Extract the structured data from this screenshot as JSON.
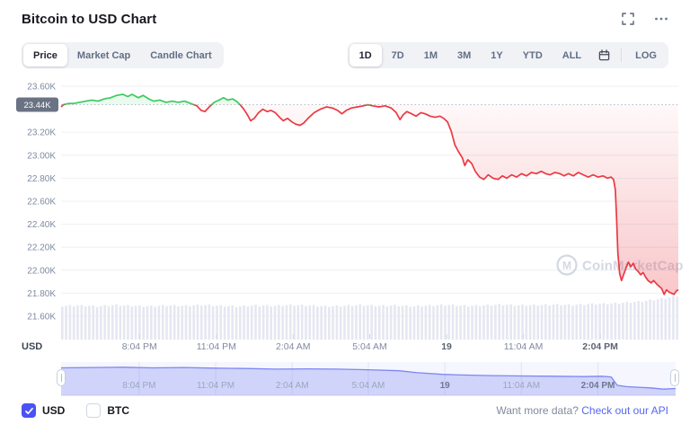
{
  "header": {
    "title": "Bitcoin to USD Chart"
  },
  "toolbar": {
    "tabs": [
      {
        "label": "Price",
        "selected": true
      },
      {
        "label": "Market Cap",
        "selected": false
      },
      {
        "label": "Candle Chart",
        "selected": false
      }
    ],
    "ranges": [
      {
        "label": "1D",
        "selected": true
      },
      {
        "label": "7D",
        "selected": false
      },
      {
        "label": "1M",
        "selected": false
      },
      {
        "label": "3M",
        "selected": false
      },
      {
        "label": "1Y",
        "selected": false
      },
      {
        "label": "YTD",
        "selected": false
      },
      {
        "label": "ALL",
        "selected": false
      }
    ],
    "log_label": "LOG"
  },
  "chart_data": {
    "type": "line",
    "title": "Bitcoin to USD Chart",
    "unit_label": "USD",
    "watermark": "CoinMarketCap",
    "baseline_value": 23.44,
    "baseline_label": "23.44K",
    "y_ticks": [
      {
        "label": "23.60K",
        "value": 23.6
      },
      {
        "label": "23.20K",
        "value": 23.2
      },
      {
        "label": "23.00K",
        "value": 23.0
      },
      {
        "label": "22.80K",
        "value": 22.8
      },
      {
        "label": "22.60K",
        "value": 22.6
      },
      {
        "label": "22.40K",
        "value": 22.4
      },
      {
        "label": "22.20K",
        "value": 22.2
      },
      {
        "label": "22.00K",
        "value": 22.0
      },
      {
        "label": "21.80K",
        "value": 21.8
      },
      {
        "label": "21.60K",
        "value": 21.6
      }
    ],
    "y_top_value": 23.6,
    "ylim": [
      21.55,
      23.65
    ],
    "x_labels": [
      {
        "label": "8:04 PM",
        "f": 0.127,
        "bold": false
      },
      {
        "label": "11:04 PM",
        "f": 0.2515,
        "bold": false
      },
      {
        "label": "2:04 AM",
        "f": 0.376,
        "bold": false
      },
      {
        "label": "5:04 AM",
        "f": 0.5,
        "bold": false
      },
      {
        "label": "19",
        "f": 0.6245,
        "bold": true
      },
      {
        "label": "11:04 AM",
        "f": 0.749,
        "bold": false
      },
      {
        "label": "2:04 PM",
        "f": 0.8735,
        "bold": true
      }
    ],
    "series": [
      [
        0,
        23.42
      ],
      [
        0.004,
        23.44
      ],
      [
        0.012,
        23.45
      ],
      [
        0.02,
        23.45
      ],
      [
        0.03,
        23.46
      ],
      [
        0.04,
        23.47
      ],
      [
        0.05,
        23.48
      ],
      [
        0.06,
        23.47
      ],
      [
        0.07,
        23.49
      ],
      [
        0.08,
        23.5
      ],
      [
        0.09,
        23.52
      ],
      [
        0.1,
        23.53
      ],
      [
        0.108,
        23.51
      ],
      [
        0.115,
        23.53
      ],
      [
        0.125,
        23.5
      ],
      [
        0.133,
        23.52
      ],
      [
        0.142,
        23.49
      ],
      [
        0.15,
        23.47
      ],
      [
        0.16,
        23.48
      ],
      [
        0.17,
        23.46
      ],
      [
        0.18,
        23.47
      ],
      [
        0.19,
        23.46
      ],
      [
        0.2,
        23.47
      ],
      [
        0.21,
        23.45
      ],
      [
        0.22,
        23.43
      ],
      [
        0.227,
        23.39
      ],
      [
        0.233,
        23.38
      ],
      [
        0.24,
        23.42
      ],
      [
        0.248,
        23.46
      ],
      [
        0.256,
        23.48
      ],
      [
        0.263,
        23.5
      ],
      [
        0.27,
        23.48
      ],
      [
        0.278,
        23.49
      ],
      [
        0.284,
        23.47
      ],
      [
        0.29,
        23.44
      ],
      [
        0.296,
        23.4
      ],
      [
        0.302,
        23.35
      ],
      [
        0.307,
        23.3
      ],
      [
        0.313,
        23.32
      ],
      [
        0.32,
        23.37
      ],
      [
        0.327,
        23.4
      ],
      [
        0.334,
        23.38
      ],
      [
        0.34,
        23.39
      ],
      [
        0.347,
        23.37
      ],
      [
        0.354,
        23.33
      ],
      [
        0.36,
        23.3
      ],
      [
        0.367,
        23.32
      ],
      [
        0.374,
        23.29
      ],
      [
        0.38,
        23.27
      ],
      [
        0.387,
        23.26
      ],
      [
        0.393,
        23.28
      ],
      [
        0.4,
        23.32
      ],
      [
        0.41,
        23.37
      ],
      [
        0.42,
        23.4
      ],
      [
        0.43,
        23.42
      ],
      [
        0.44,
        23.41
      ],
      [
        0.448,
        23.39
      ],
      [
        0.455,
        23.36
      ],
      [
        0.462,
        23.39
      ],
      [
        0.47,
        23.41
      ],
      [
        0.48,
        23.42
      ],
      [
        0.49,
        23.43
      ],
      [
        0.497,
        23.44
      ],
      [
        0.505,
        23.43
      ],
      [
        0.515,
        23.42
      ],
      [
        0.525,
        23.43
      ],
      [
        0.535,
        23.41
      ],
      [
        0.543,
        23.37
      ],
      [
        0.549,
        23.31
      ],
      [
        0.554,
        23.35
      ],
      [
        0.56,
        23.38
      ],
      [
        0.568,
        23.36
      ],
      [
        0.575,
        23.34
      ],
      [
        0.583,
        23.37
      ],
      [
        0.59,
        23.36
      ],
      [
        0.598,
        23.34
      ],
      [
        0.606,
        23.33
      ],
      [
        0.614,
        23.34
      ],
      [
        0.62,
        23.32
      ],
      [
        0.626,
        23.29
      ],
      [
        0.632,
        23.21
      ],
      [
        0.638,
        23.09
      ],
      [
        0.644,
        23.03
      ],
      [
        0.65,
        22.98
      ],
      [
        0.654,
        22.91
      ],
      [
        0.659,
        22.96
      ],
      [
        0.665,
        22.93
      ],
      [
        0.671,
        22.86
      ],
      [
        0.678,
        22.81
      ],
      [
        0.685,
        22.79
      ],
      [
        0.692,
        22.83
      ],
      [
        0.7,
        22.8
      ],
      [
        0.708,
        22.79
      ],
      [
        0.715,
        22.82
      ],
      [
        0.722,
        22.8
      ],
      [
        0.73,
        22.83
      ],
      [
        0.738,
        22.81
      ],
      [
        0.746,
        22.84
      ],
      [
        0.754,
        22.82
      ],
      [
        0.762,
        22.85
      ],
      [
        0.77,
        22.84
      ],
      [
        0.778,
        22.86
      ],
      [
        0.785,
        22.84
      ],
      [
        0.792,
        22.83
      ],
      [
        0.8,
        22.85
      ],
      [
        0.808,
        22.84
      ],
      [
        0.815,
        22.82
      ],
      [
        0.822,
        22.84
      ],
      [
        0.83,
        22.82
      ],
      [
        0.838,
        22.85
      ],
      [
        0.846,
        22.83
      ],
      [
        0.854,
        22.81
      ],
      [
        0.862,
        22.83
      ],
      [
        0.87,
        22.81
      ],
      [
        0.878,
        22.82
      ],
      [
        0.885,
        22.8
      ],
      [
        0.891,
        22.81
      ],
      [
        0.895,
        22.79
      ],
      [
        0.898,
        22.7
      ],
      [
        0.9,
        22.45
      ],
      [
        0.902,
        22.15
      ],
      [
        0.905,
        21.97
      ],
      [
        0.908,
        21.91
      ],
      [
        0.912,
        21.97
      ],
      [
        0.916,
        22.03
      ],
      [
        0.919,
        22.07
      ],
      [
        0.923,
        22.03
      ],
      [
        0.927,
        22.06
      ],
      [
        0.931,
        22.01
      ],
      [
        0.935,
        21.99
      ],
      [
        0.939,
        21.96
      ],
      [
        0.943,
        21.98
      ],
      [
        0.947,
        21.94
      ],
      [
        0.951,
        21.91
      ],
      [
        0.956,
        21.89
      ],
      [
        0.96,
        21.91
      ],
      [
        0.965,
        21.88
      ],
      [
        0.969,
        21.86
      ],
      [
        0.973,
        21.84
      ],
      [
        0.977,
        21.79
      ],
      [
        0.981,
        21.83
      ],
      [
        0.985,
        21.81
      ],
      [
        0.989,
        21.8
      ],
      [
        0.993,
        21.79
      ],
      [
        0.997,
        21.82
      ],
      [
        1,
        21.83
      ]
    ],
    "volume_profile": [
      0.75,
      0.76,
      0.74,
      0.77,
      0.75,
      0.74,
      0.76,
      0.75,
      0.77,
      0.75,
      0.74,
      0.76,
      0.75,
      0.77,
      0.76,
      0.74,
      0.75,
      0.77,
      0.75,
      0.76,
      0.74,
      0.76,
      0.77,
      0.75,
      0.76,
      0.78,
      0.76,
      0.77,
      0.78,
      0.77,
      0.79,
      0.8,
      0.82,
      0.85,
      0.9,
      0.97
    ],
    "navigator": {
      "points": [
        [
          0,
          0.18
        ],
        [
          0.05,
          0.17
        ],
        [
          0.1,
          0.16
        ],
        [
          0.15,
          0.18
        ],
        [
          0.2,
          0.17
        ],
        [
          0.25,
          0.19
        ],
        [
          0.3,
          0.2
        ],
        [
          0.35,
          0.22
        ],
        [
          0.4,
          0.21
        ],
        [
          0.45,
          0.22
        ],
        [
          0.5,
          0.24
        ],
        [
          0.55,
          0.27
        ],
        [
          0.58,
          0.33
        ],
        [
          0.62,
          0.38
        ],
        [
          0.65,
          0.4
        ],
        [
          0.7,
          0.42
        ],
        [
          0.75,
          0.43
        ],
        [
          0.8,
          0.44
        ],
        [
          0.85,
          0.45
        ],
        [
          0.88,
          0.44
        ],
        [
          0.895,
          0.46
        ],
        [
          0.905,
          0.72
        ],
        [
          0.92,
          0.76
        ],
        [
          0.94,
          0.78
        ],
        [
          0.96,
          0.8
        ],
        [
          0.98,
          0.84
        ],
        [
          1,
          0.82
        ]
      ]
    },
    "colors": {
      "green_line": "#3aca5e",
      "red_line": "#ea3943",
      "green_fill": "rgba(58,202,94,0.10)",
      "red_fill_deep": "rgba(234,57,67,0.30)",
      "volume_bar": "#e5e7f1",
      "grid": "#eef0f4",
      "baseline_dots": "#b6bdca",
      "badge_bg": "#6a7384",
      "axis_text": "#7f8aa0",
      "nav_line": "#7b87f2",
      "nav_fill": "rgba(124,134,245,0.30)",
      "nav_tint": "rgba(113,123,242,0.07)",
      "watermark": "#c8cfdc",
      "accent_checkbox": "#4a52f3",
      "link": "#5667f0"
    }
  },
  "legend": [
    {
      "label": "USD",
      "checked": true
    },
    {
      "label": "BTC",
      "checked": false
    }
  ],
  "footer": {
    "prompt": "Want more data?",
    "link": "Check out our API"
  }
}
